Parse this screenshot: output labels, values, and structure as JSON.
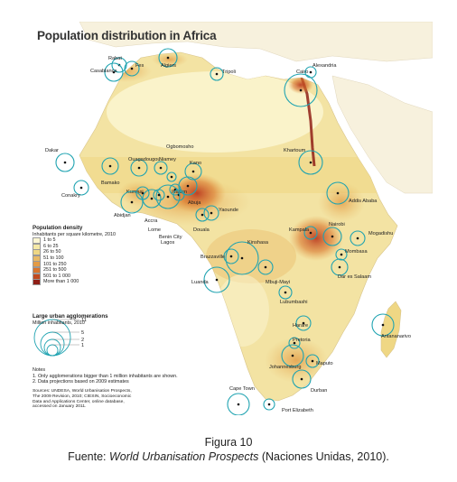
{
  "title": "Population distribution in Africa",
  "colors": {
    "ocean": "#ffffff",
    "land_base": "#f3e3a3",
    "circle": "#1fa3b1"
  },
  "density_legend": {
    "title": "Population density",
    "subtitle": "Inhabitants per square kilometre, 2010",
    "classes": [
      {
        "label": "1 to 5",
        "color": "#fbf6d3"
      },
      {
        "label": "6 to 25",
        "color": "#f5e9a6"
      },
      {
        "label": "26 to 50",
        "color": "#efd784"
      },
      {
        "label": "51 to 100",
        "color": "#e8b965"
      },
      {
        "label": "101 to 250",
        "color": "#e39b45"
      },
      {
        "label": "251 to 500",
        "color": "#d9752d"
      },
      {
        "label": "501 to 1 000",
        "color": "#c24a1f"
      },
      {
        "label": "More than 1 000",
        "color": "#8f1e16"
      }
    ]
  },
  "agglo_legend": {
    "title": "Large urban agglomerations",
    "subtitle": "Million inhabitants, 2010",
    "values": [
      "11",
      "5",
      "2",
      "1"
    ]
  },
  "notes": {
    "title": "Notes",
    "line1": "1. Only agglomerations bigger than 1 million inhabitants are shown.",
    "line2": "2. Data projections based on 2009 estimates"
  },
  "sources": {
    "line1": "Sources: UNDESA, World Urbanisation Prospects,",
    "line2": "The 2009 Revision, 2010; CIESIN, Socioeconomic",
    "line3": "Data and Applications Center, online database,",
    "line4": "accessed on January 2011."
  },
  "cities": [
    {
      "name": "Rabat"
    },
    {
      "name": "Fes"
    },
    {
      "name": "Casablanca"
    },
    {
      "name": "Algiers"
    },
    {
      "name": "Tripoli"
    },
    {
      "name": "Cairo"
    },
    {
      "name": "Alexandria"
    },
    {
      "name": "Khartoum"
    },
    {
      "name": "Dakar"
    },
    {
      "name": "Conakry"
    },
    {
      "name": "Bamako"
    },
    {
      "name": "Ouagadougou"
    },
    {
      "name": "Niamey"
    },
    {
      "name": "Ogbomosho"
    },
    {
      "name": "Kano"
    },
    {
      "name": "Ibadan"
    },
    {
      "name": "Kumasi"
    },
    {
      "name": "Abidjan"
    },
    {
      "name": "Accra"
    },
    {
      "name": "Lome"
    },
    {
      "name": "Benin City"
    },
    {
      "name": "Lagos"
    },
    {
      "name": "Abuja"
    },
    {
      "name": "Yaounde"
    },
    {
      "name": "Douala"
    },
    {
      "name": "Addis Ababa"
    },
    {
      "name": "Kampala"
    },
    {
      "name": "Nairobi"
    },
    {
      "name": "Mogadishu"
    },
    {
      "name": "Mombasa"
    },
    {
      "name": "Dar es Salaam"
    },
    {
      "name": "Kinshasa"
    },
    {
      "name": "Brazzaville"
    },
    {
      "name": "Luanda"
    },
    {
      "name": "Mbuji-Mayi"
    },
    {
      "name": "Lubumbashi"
    },
    {
      "name": "Harare"
    },
    {
      "name": "Antananarivo"
    },
    {
      "name": "Pretoria"
    },
    {
      "name": "Johannesburg"
    },
    {
      "name": "Maputo"
    },
    {
      "name": "Durban"
    },
    {
      "name": "Cape Town"
    },
    {
      "name": "Port Elizabeth"
    }
  ],
  "caption": {
    "figure": "Figura 10",
    "prefix": "Fuente: ",
    "source_title": "World Urbanisation Prospects",
    "suffix": " (Naciones Unidas, 2010)."
  }
}
